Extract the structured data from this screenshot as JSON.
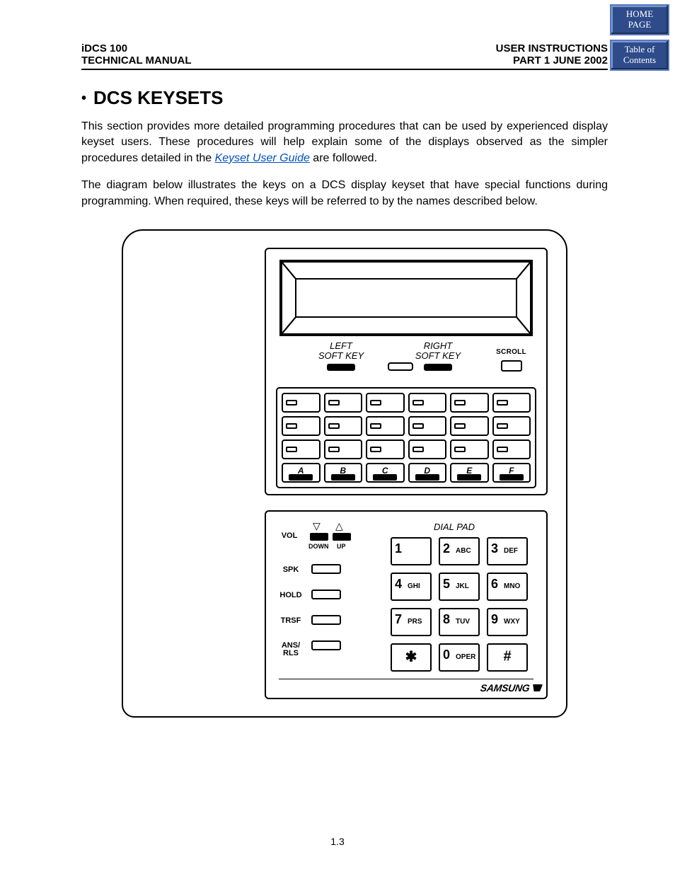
{
  "header": {
    "left_top": "iDCS 100",
    "left_bottom": "TECHNICAL MANUAL",
    "right_top": "USER INSTRUCTIONS",
    "right_bottom": "PART 1   JUNE  2002"
  },
  "nav": {
    "home1": "HOME",
    "home2": "PAGE",
    "toc1": "Table of",
    "toc2": "Contents"
  },
  "heading": "DCS KEYSETS",
  "para1a": "This section provides more detailed programming procedures that can be used by experienced display keyset users. These procedures will help explain some of the displays observed as the simpler procedures detailed in the ",
  "link": "Keyset User Guide",
  "para1b": " are followed.",
  "para2": "The diagram below illustrates the keys on a DCS display keyset that have special functions during programming. When required, these keys will be referred to by the names described below.",
  "keyset": {
    "left_soft_key_l1": "LEFT",
    "left_soft_key_l2": "SOFT KEY",
    "right_soft_key_l1": "RIGHT",
    "right_soft_key_l2": "SOFT KEY",
    "scroll": "SCROLL",
    "letters": [
      "A",
      "B",
      "C",
      "D",
      "E",
      "F"
    ],
    "vol": "VOL",
    "down": "DOWN",
    "up": "UP",
    "spk": "SPK",
    "hold": "HOLD",
    "trsf": "TRSF",
    "ansrls_l1": "ANS/",
    "ansrls_l2": "RLS",
    "dial_pad": "DIAL PAD",
    "keys": [
      {
        "n": "1",
        "l": ""
      },
      {
        "n": "2",
        "l": "ABC"
      },
      {
        "n": "3",
        "l": "DEF"
      },
      {
        "n": "4",
        "l": "GHI"
      },
      {
        "n": "5",
        "l": "JKL"
      },
      {
        "n": "6",
        "l": "MNO"
      },
      {
        "n": "7",
        "l": "PRS"
      },
      {
        "n": "8",
        "l": "TUV"
      },
      {
        "n": "9",
        "l": "WXY"
      },
      {
        "n": "*",
        "l": ""
      },
      {
        "n": "0",
        "l": "OPER"
      },
      {
        "n": "#",
        "l": ""
      }
    ],
    "brand": "SAMSUNG"
  },
  "pagenum": "1.3",
  "colors": {
    "nav_bg": "#2e4b8a",
    "link": "#0050c0"
  }
}
